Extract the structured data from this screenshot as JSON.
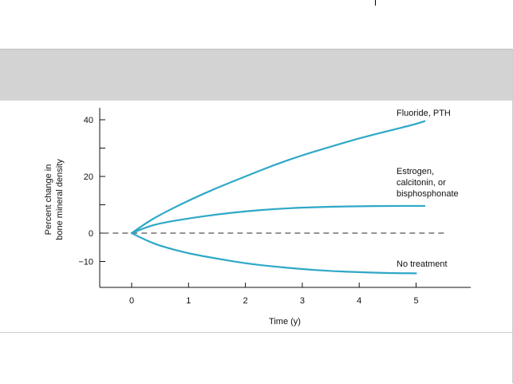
{
  "chart_data": {
    "type": "line",
    "title": "",
    "xlabel": "Time (y)",
    "ylabel": [
      "Percent change in",
      "bone mineral density"
    ],
    "x_ticks": [
      0,
      1,
      2,
      3,
      4,
      5
    ],
    "y_ticks": [
      40,
      20,
      0,
      -10
    ],
    "y_minor_ticks": [
      30,
      10
    ],
    "xlim": [
      -0.5,
      5.9
    ],
    "ylim": [
      -19,
      44
    ],
    "grid": false,
    "baseline": {
      "y": 0,
      "style": "dashed",
      "x_range": [
        -0.5,
        5.5
      ]
    },
    "series": [
      {
        "name": "Fluoride, PTH",
        "label_lines": [
          "Fluoride, PTH"
        ],
        "color": "#2ea8c7",
        "x": [
          0,
          0.25,
          0.5,
          1,
          1.5,
          2,
          2.5,
          3,
          3.5,
          4,
          4.5,
          5,
          5.15
        ],
        "y": [
          0,
          3.5,
          6.5,
          11.5,
          16,
          20,
          24,
          27.5,
          30.5,
          33.5,
          36,
          38.5,
          39.5
        ]
      },
      {
        "name": "Estrogen, calcitonin, or bisphosphonate",
        "label_lines": [
          "Estrogen,",
          "calcitonin, or",
          "bisphosphonate"
        ],
        "color": "#2ea8c7",
        "x": [
          0,
          0.25,
          0.5,
          1,
          1.5,
          2,
          2.5,
          3,
          3.5,
          4,
          4.5,
          5,
          5.15
        ],
        "y": [
          0,
          2,
          3.5,
          5.2,
          6.6,
          7.7,
          8.5,
          9,
          9.3,
          9.5,
          9.6,
          9.6,
          9.6
        ]
      },
      {
        "name": "No treatment",
        "label_lines": [
          "No treatment"
        ],
        "color": "#2ea8c7",
        "x": [
          0,
          0.25,
          0.5,
          1,
          1.5,
          2,
          2.5,
          3,
          3.5,
          4,
          4.5,
          5
        ],
        "y": [
          0,
          -2.5,
          -4.5,
          -7.2,
          -9,
          -10.7,
          -11.8,
          -12.7,
          -13.4,
          -13.8,
          -14.1,
          -14.2
        ]
      }
    ]
  },
  "colors": {
    "band": "#d3d3d3",
    "curve": "#2ea8c7",
    "axis": "#111111",
    "dash": "#555555"
  }
}
